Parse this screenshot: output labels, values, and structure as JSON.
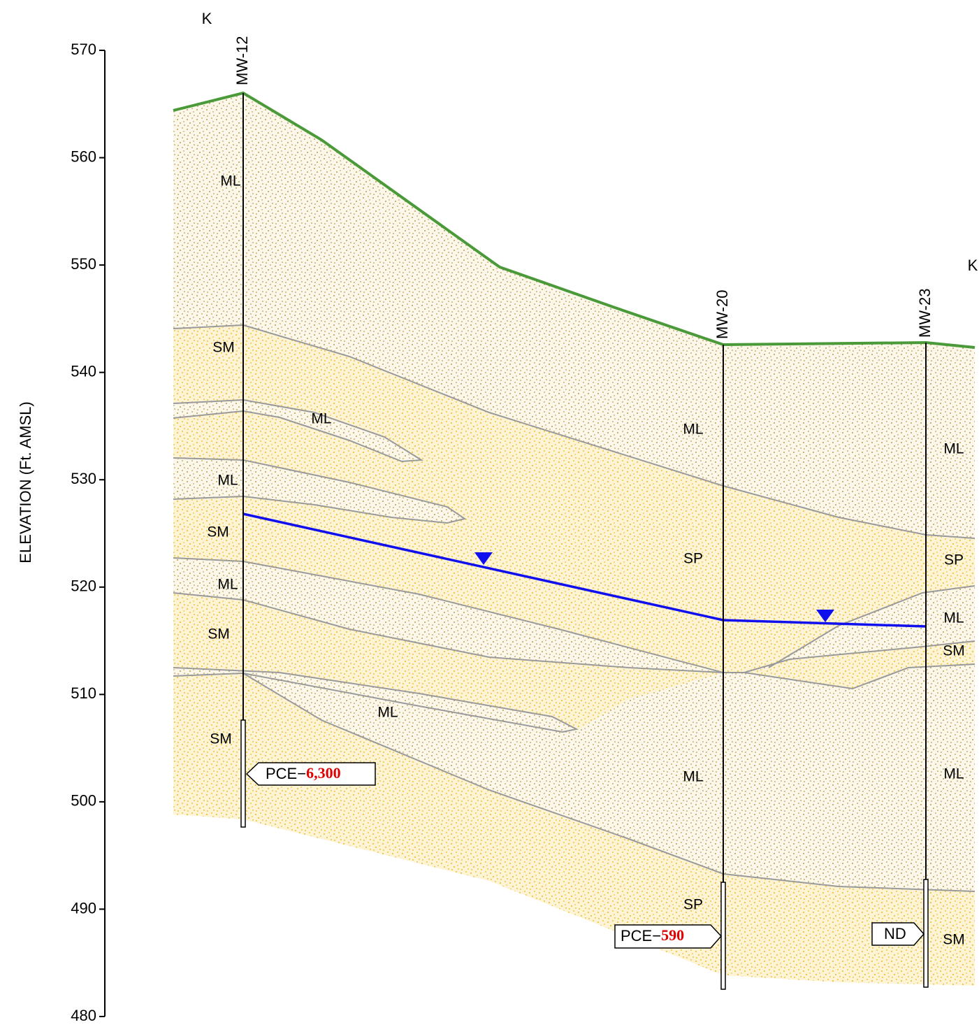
{
  "axis": {
    "label": "ELEVATION (Ft. AMSL)",
    "ylim": [
      480,
      570
    ],
    "yticks": [
      480,
      490,
      500,
      510,
      520,
      530,
      540,
      550,
      560,
      570
    ]
  },
  "section_labels": [
    "K",
    "K"
  ],
  "wells": [
    {
      "name": "MW-12",
      "sample": {
        "analyte": "PCE−",
        "result": "6,300"
      }
    },
    {
      "name": "MW-20",
      "sample": {
        "analyte": "PCE−",
        "result": "590"
      }
    },
    {
      "name": "MW-23",
      "sample": {
        "result": "ND"
      }
    }
  ],
  "soil_labels": [
    "ML",
    "SM",
    "ML",
    "ML",
    "SM",
    "ML",
    "SM",
    "SM",
    "ML",
    "ML",
    "SP",
    "ML",
    "SP",
    "ML",
    "SP",
    "ML",
    "SM",
    "ML",
    "SM"
  ]
}
